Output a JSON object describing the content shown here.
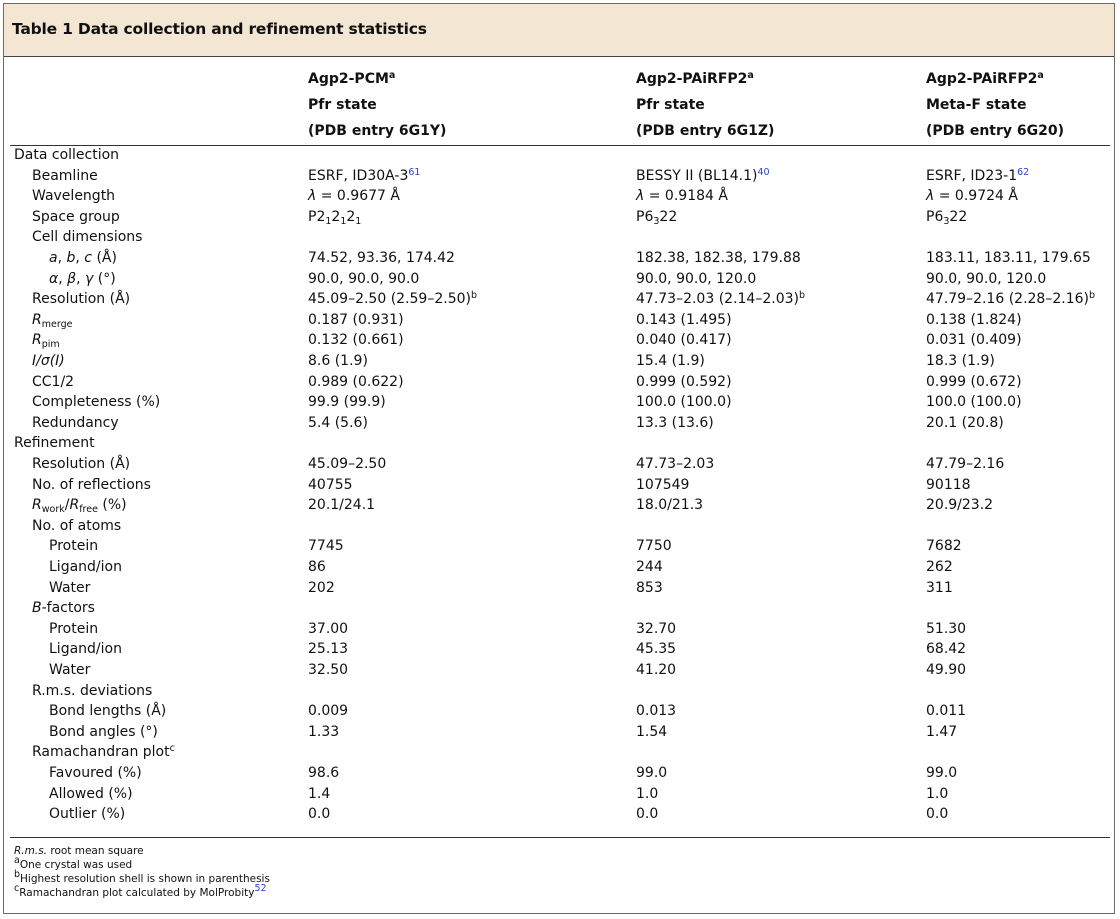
{
  "title": "Table 1 Data collection and refinement statistics",
  "columns": [
    {
      "name": "Agp2-PCM",
      "name_sup": "a",
      "state": "Pfr state",
      "entry": "(PDB entry 6G1Y)"
    },
    {
      "name": "Agp2-PAiRFP2",
      "name_sup": "a",
      "state": "Pfr state",
      "entry": "(PDB entry 6G1Z)"
    },
    {
      "name": "Agp2-PAiRFP2",
      "name_sup": "a",
      "state": "Meta-F state",
      "entry": "(PDB entry 6G20)"
    }
  ],
  "rows": {
    "r0": {
      "label": "Data collection"
    },
    "r1": {
      "label": "Beamline",
      "v1": "ESRF, ID30A-3",
      "v1_ref": "61",
      "v2": "BESSY II (BL14.1)",
      "v2_ref": "40",
      "v3": "ESRF, ID23-1",
      "v3_ref": "62"
    },
    "r2": {
      "label": "Wavelength",
      "lambda": "λ",
      "v1": " = 0.9677 Å",
      "v2": " = 0.9184 Å",
      "v3": " = 0.9724 Å"
    },
    "r3": {
      "label": "Space group",
      "sg1_a": "P2",
      "sg1_s": "1",
      "sg2_a": "P6",
      "sg2_s": "3",
      "sg2_b": "22"
    },
    "r4": {
      "label": "Cell dimensions"
    },
    "r5": {
      "label_a": "a",
      "label_b": "b",
      "label_c": "c",
      "label_unit": " (Å)",
      "v1": "74.52, 93.36, 174.42",
      "v2": "182.38, 182.38, 179.88",
      "v3": "183.11, 183.11, 179.65"
    },
    "r6": {
      "label_a": "α",
      "label_b": "β",
      "label_c": "γ",
      "label_unit": " (°)",
      "v1": "90.0, 90.0, 90.0",
      "v2": "90.0, 90.0, 120.0",
      "v3": "90.0, 90.0, 120.0"
    },
    "r7": {
      "label": "Resolution (Å)",
      "v1": "45.09–2.50 (2.59–2.50)",
      "v2": "47.73–2.03 (2.14–2.03)",
      "v3": "47.79–2.16 (2.28–2.16)",
      "sup": "b"
    },
    "r8": {
      "label_main": "R",
      "label_sub": "merge",
      "v1": "0.187 (0.931)",
      "v2": "0.143 (1.495)",
      "v3": "0.138 (1.824)"
    },
    "r9": {
      "label_main": "R",
      "label_sub": "pim",
      "v1": "0.132 (0.661)",
      "v2": "0.040 (0.417)",
      "v3": "0.031 (0.409)"
    },
    "r10": {
      "label": "I/σ(I)",
      "v1": "8.6 (1.9)",
      "v2": "15.4 (1.9)",
      "v3": "18.3 (1.9)"
    },
    "r11": {
      "label": "CC1/2",
      "v1": "0.989 (0.622)",
      "v2": "0.999 (0.592)",
      "v3": "0.999 (0.672)"
    },
    "r12": {
      "label": "Completeness (%)",
      "v1": "99.9 (99.9)",
      "v2": "100.0 (100.0)",
      "v3": "100.0 (100.0)"
    },
    "r13": {
      "label": "Redundancy",
      "v1": "5.4 (5.6)",
      "v2": "13.3 (13.6)",
      "v3": "20.1 (20.8)"
    },
    "r14": {
      "label": "Refinement"
    },
    "r15": {
      "label": "Resolution (Å)",
      "v1": "45.09–2.50",
      "v2": "47.73–2.03",
      "v3": "47.79–2.16"
    },
    "r16": {
      "label": "No. of reflections",
      "v1": "40755",
      "v2": "107549",
      "v3": "90118"
    },
    "r17": {
      "label_r": "R",
      "label_sub1": "work",
      "label_slash": "/",
      "label_sub2": "free",
      "label_unit": " (%)",
      "v1": "20.1/24.1",
      "v2": "18.0/21.3",
      "v3": "20.9/23.2"
    },
    "r18": {
      "label": "No. of atoms"
    },
    "r19": {
      "label": "Protein",
      "v1": "7745",
      "v2": "7750",
      "v3": "7682"
    },
    "r20": {
      "label": "Ligand/ion",
      "v1": "86",
      "v2": "244",
      "v3": "262"
    },
    "r21": {
      "label": "Water",
      "v1": "202",
      "v2": "853",
      "v3": "311"
    },
    "r22": {
      "label_i": "B",
      "label_rest": "-factors"
    },
    "r23": {
      "label": "Protein",
      "v1": "37.00",
      "v2": "32.70",
      "v3": "51.30"
    },
    "r24": {
      "label": "Ligand/ion",
      "v1": "25.13",
      "v2": "45.35",
      "v3": "68.42"
    },
    "r25": {
      "label": "Water",
      "v1": "32.50",
      "v2": "41.20",
      "v3": "49.90"
    },
    "r26": {
      "label": "R.m.s. deviations"
    },
    "r27": {
      "label": "Bond lengths (Å)",
      "v1": "0.009",
      "v2": "0.013",
      "v3": "0.011"
    },
    "r28": {
      "label": "Bond angles (°)",
      "v1": "1.33",
      "v2": "1.54",
      "v3": "1.47"
    },
    "r29": {
      "label": "Ramachandran plot",
      "sup": "c"
    },
    "r30": {
      "label": "Favoured (%)",
      "v1": "98.6",
      "v2": "99.0",
      "v3": "99.0"
    },
    "r31": {
      "label": "Allowed (%)",
      "v1": "1.4",
      "v2": "1.0",
      "v3": "1.0"
    },
    "r32": {
      "label": "Outlier (%)",
      "v1": "0.0",
      "v2": "0.0",
      "v3": "0.0"
    }
  },
  "footnotes": {
    "f0_i": "R.m.s.",
    "f0_rest": " root mean square",
    "f1_sup": "a",
    "f1": "One crystal was used",
    "f2_sup": "b",
    "f2": "Highest resolution shell is shown in parenthesis",
    "f3_sup": "c",
    "f3": "Ramachandran plot calculated by MolProbity",
    "f3_ref": "52"
  }
}
